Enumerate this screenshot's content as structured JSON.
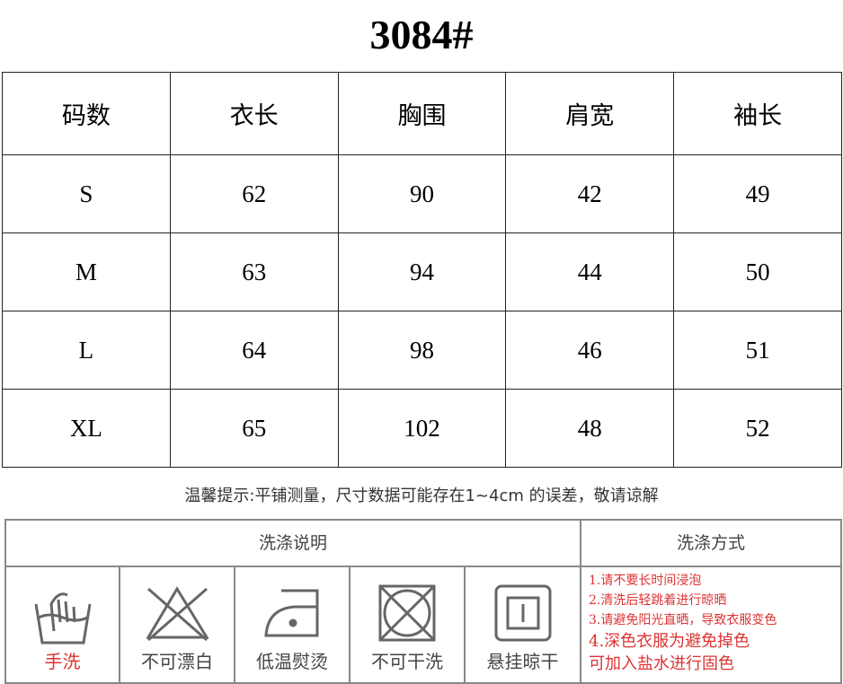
{
  "title": "3084#",
  "size_table": {
    "headers": [
      "码数",
      "衣长",
      "胸围",
      "肩宽",
      "袖长"
    ],
    "rows": [
      [
        "S",
        "62",
        "90",
        "42",
        "49"
      ],
      [
        "M",
        "63",
        "94",
        "44",
        "50"
      ],
      [
        "L",
        "64",
        "98",
        "46",
        "51"
      ],
      [
        "XL",
        "65",
        "102",
        "48",
        "52"
      ]
    ]
  },
  "note": "温馨提示:平铺测量，尺寸数据可能存在1~4cm 的误差，敬请谅解",
  "care": {
    "instructions_header": "洗涤说明",
    "method_header": "洗涤方式",
    "icons": [
      {
        "icon": "hand-wash-icon",
        "label": "手洗",
        "color": "#d33"
      },
      {
        "icon": "no-bleach-icon",
        "label": "不可漂白"
      },
      {
        "icon": "low-temp-iron-icon",
        "label": "低温熨烫"
      },
      {
        "icon": "no-dry-clean-icon",
        "label": "不可干洗"
      },
      {
        "icon": "hang-dry-icon",
        "label": "悬挂晾干"
      }
    ],
    "methods": [
      "1.请不要长时间浸泡",
      "2.清洗后轻跳着进行晾晒",
      "3.请避免阳光直晒，导致衣服变色",
      "4.深色衣服为避免掉色",
      "可加入盐水进行固色"
    ]
  }
}
